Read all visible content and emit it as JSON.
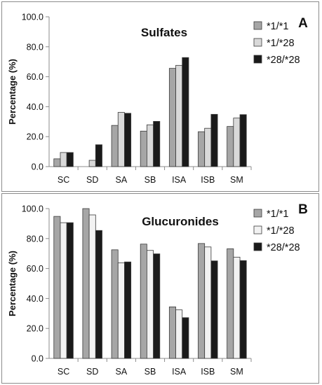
{
  "chart_data": [
    {
      "type": "bar",
      "title": "Sulfates",
      "panel_label": "A",
      "ylabel": "Percentage (%)",
      "xlabel": "",
      "ylim": [
        0,
        100
      ],
      "yticks": [
        "0.0",
        "20.0",
        "40.0",
        "60.0",
        "80.0",
        "100.0"
      ],
      "categories": [
        "SC",
        "SD",
        "SA",
        "SB",
        "ISA",
        "ISB",
        "SM"
      ],
      "legend_position": "top-right",
      "grid": false,
      "series": [
        {
          "name": "*1/*1",
          "color": "#a6a6a6",
          "values": [
            5.2,
            0,
            27.5,
            23.7,
            65.6,
            23.3,
            26.8
          ]
        },
        {
          "name": "*1/*28",
          "color": "#d9d9d9",
          "values": [
            9.4,
            4.2,
            36.2,
            27.9,
            67.6,
            25.6,
            32.4
          ]
        },
        {
          "name": "*28/*28",
          "color": "#1a1a1a",
          "values": [
            9.4,
            14.6,
            35.6,
            30.2,
            72.8,
            34.9,
            34.7
          ]
        }
      ]
    },
    {
      "type": "bar",
      "title": "Glucuronides",
      "panel_label": "B",
      "ylabel": "Percentage (%)",
      "xlabel": "",
      "ylim": [
        0,
        100
      ],
      "yticks": [
        "0.0",
        "20.0",
        "40.0",
        "60.0",
        "80.0",
        "100.0"
      ],
      "categories": [
        "SC",
        "SD",
        "SA",
        "SB",
        "ISA",
        "ISB",
        "SM"
      ],
      "legend_position": "top-right",
      "grid": false,
      "series": [
        {
          "name": "*1/*1",
          "color": "#a6a6a6",
          "values": [
            94.8,
            100,
            72.5,
            76.3,
            34.4,
            76.7,
            73.2
          ]
        },
        {
          "name": "*1/*28",
          "color": "#f2f2f2",
          "values": [
            90.6,
            95.8,
            63.8,
            72.1,
            32.4,
            74.4,
            67.6
          ]
        },
        {
          "name": "*28/*28",
          "color": "#1a1a1a",
          "values": [
            90.6,
            85.4,
            64.4,
            69.8,
            27.2,
            65.1,
            65.3
          ]
        }
      ]
    }
  ]
}
